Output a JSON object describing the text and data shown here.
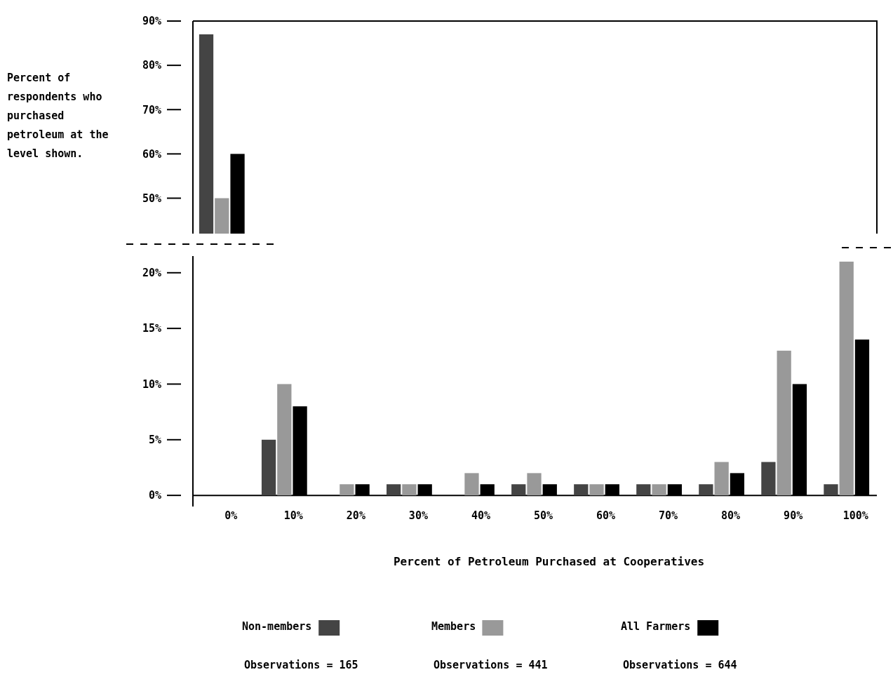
{
  "chart_data": [
    {
      "type": "bar",
      "ylabel": "Percent of respondents who purchased petroleum at the level shown.",
      "categories": [
        null,
        null,
        null,
        null,
        null,
        null,
        null,
        null,
        null,
        null,
        null
      ],
      "series": [
        {
          "color": "#444444",
          "values": [
            87,
            null,
            null,
            null,
            null,
            null,
            null,
            null,
            null,
            null,
            null
          ]
        },
        {
          "color": "#999999",
          "values": [
            50,
            null,
            null,
            null,
            null,
            null,
            null,
            null,
            null,
            null,
            null
          ]
        },
        {
          "color": "#000000",
          "values": [
            60,
            null,
            null,
            null,
            null,
            null,
            null,
            null,
            null,
            null,
            null
          ]
        }
      ],
      "ylim": [
        42,
        90
      ],
      "yticks": [
        {
          "value": 50,
          "label": "50%"
        },
        {
          "value": 60,
          "label": "60%"
        },
        {
          "value": 70,
          "label": "70%"
        },
        {
          "value": 80,
          "label": "80%"
        },
        {
          "value": 90,
          "label": "90%"
        }
      ],
      "tick_labels": "y",
      "grid": false,
      "legend": false
    },
    {
      "type": "bar",
      "xlabel": "Percent of Petroleum Purchased at Cooperatives",
      "categories": [
        "0%",
        "10%",
        "20%",
        "30%",
        "40%",
        "50%",
        "60%",
        "70%",
        "80%",
        "90%",
        "100%"
      ],
      "series": [
        {
          "name": "Non-members",
          "color": "#444444",
          "values": [
            null,
            5,
            0,
            1,
            0,
            1,
            1,
            1,
            1,
            3,
            1
          ]
        },
        {
          "name": "Members",
          "color": "#999999",
          "values": [
            null,
            10,
            1,
            1,
            2,
            2,
            1,
            1,
            3,
            13,
            21
          ]
        },
        {
          "name": "All Farmers",
          "color": "#000000",
          "values": [
            null,
            8,
            1,
            1,
            1,
            1,
            1,
            1,
            2,
            10,
            14
          ]
        }
      ],
      "ylim": [
        -1,
        21.5
      ],
      "yticks": [
        {
          "value": 0,
          "label": "0%"
        },
        {
          "value": 5,
          "label": "5%"
        },
        {
          "value": 10,
          "label": "10%"
        },
        {
          "value": 15,
          "label": "15%"
        },
        {
          "value": 20,
          "label": "20%"
        }
      ],
      "grid": false,
      "legend": "bottom",
      "annotations": [
        "Observations = 165",
        "Observations = 441",
        "Observations = 644"
      ]
    }
  ]
}
